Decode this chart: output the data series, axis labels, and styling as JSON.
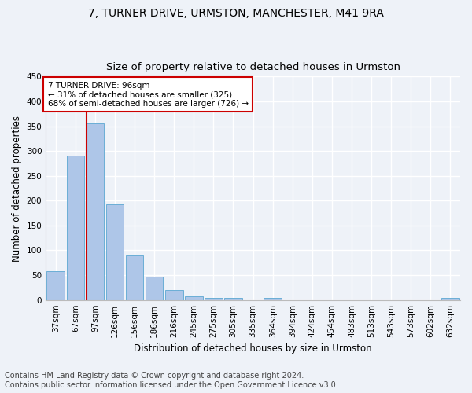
{
  "title1": "7, TURNER DRIVE, URMSTON, MANCHESTER, M41 9RA",
  "title2": "Size of property relative to detached houses in Urmston",
  "xlabel": "Distribution of detached houses by size in Urmston",
  "ylabel": "Number of detached properties",
  "categories": [
    "37sqm",
    "67sqm",
    "97sqm",
    "126sqm",
    "156sqm",
    "186sqm",
    "216sqm",
    "245sqm",
    "275sqm",
    "305sqm",
    "335sqm",
    "364sqm",
    "394sqm",
    "424sqm",
    "454sqm",
    "483sqm",
    "513sqm",
    "543sqm",
    "573sqm",
    "602sqm",
    "632sqm"
  ],
  "values": [
    58,
    290,
    355,
    192,
    90,
    47,
    20,
    8,
    5,
    5,
    0,
    4,
    0,
    0,
    0,
    0,
    0,
    0,
    0,
    0,
    5
  ],
  "bar_color": "#aec6e8",
  "bar_edge_color": "#6aaed6",
  "property_line_x": 1.55,
  "annotation_line1": "7 TURNER DRIVE: 96sqm",
  "annotation_line2": "← 31% of detached houses are smaller (325)",
  "annotation_line3": "68% of semi-detached houses are larger (726) →",
  "annotation_box_color": "#ffffff",
  "annotation_box_edge_color": "#cc0000",
  "property_vline_color": "#cc0000",
  "ylim": [
    0,
    450
  ],
  "footer1": "Contains HM Land Registry data © Crown copyright and database right 2024.",
  "footer2": "Contains public sector information licensed under the Open Government Licence v3.0.",
  "background_color": "#eef2f8",
  "grid_color": "#ffffff",
  "title1_fontsize": 10,
  "title2_fontsize": 9.5,
  "axis_fontsize": 8.5,
  "tick_fontsize": 7.5,
  "footer_fontsize": 7
}
